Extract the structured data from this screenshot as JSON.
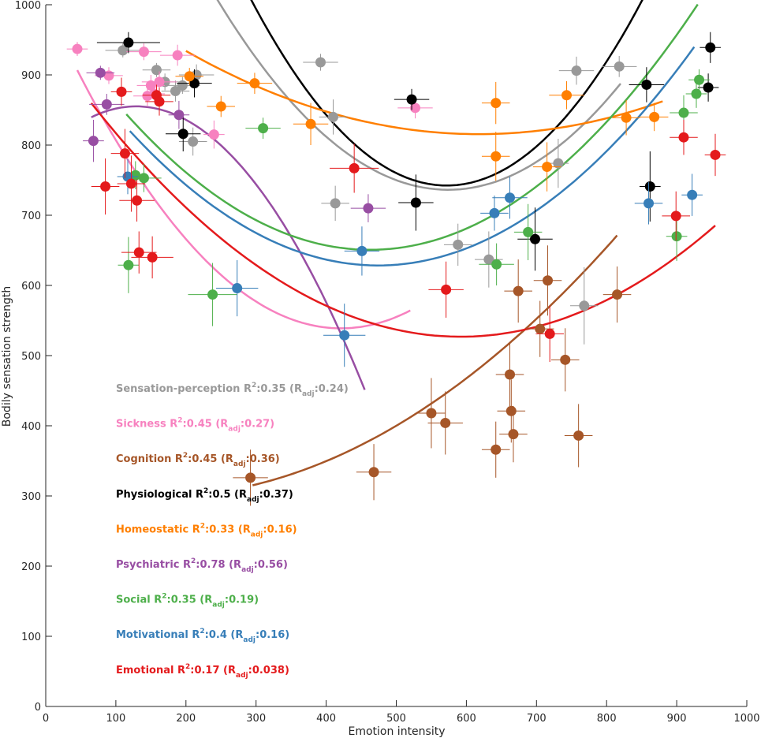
{
  "chart_data": {
    "type": "scatter",
    "xlabel": "Emotion intensity",
    "ylabel": "Bodily sensation strength",
    "xlim": [
      0,
      1000
    ],
    "ylim": [
      0,
      1000
    ],
    "xticks": [
      0,
      100,
      200,
      300,
      400,
      500,
      600,
      700,
      800,
      900,
      1000
    ],
    "yticks": [
      0,
      100,
      200,
      300,
      400,
      500,
      600,
      700,
      800,
      900,
      1000
    ],
    "grid": false,
    "error_bars": true,
    "series": [
      {
        "name": "Sensation-perception",
        "color": "#999999",
        "stat": {
          "r2": "0.35",
          "r2adj": "0.24"
        },
        "fit": {
          "a": 0.0025,
          "b": -2.87,
          "c": 1560,
          "x_range": [
            115,
            820
          ]
        },
        "points": [
          [
            110,
            935,
            25,
            10
          ],
          [
            158,
            907,
            20,
            10
          ],
          [
            170,
            890,
            25,
            12
          ],
          [
            185,
            877,
            20,
            15
          ],
          [
            195,
            885,
            25,
            12
          ],
          [
            210,
            805,
            20,
            20
          ],
          [
            215,
            900,
            25,
            15
          ],
          [
            392,
            918,
            25,
            12
          ],
          [
            410,
            840,
            20,
            25
          ],
          [
            413,
            717,
            20,
            25
          ],
          [
            588,
            658,
            20,
            30
          ],
          [
            632,
            637,
            20,
            40
          ],
          [
            731,
            774,
            15,
            35
          ],
          [
            757,
            906,
            25,
            20
          ],
          [
            768,
            571,
            20,
            55
          ],
          [
            818,
            912,
            25,
            15
          ]
        ]
      },
      {
        "name": "Sickness",
        "color": "#f781bf",
        "stat": {
          "r2": "0.45",
          "r2adj": "0.27"
        },
        "fit": {
          "a": 0.0026,
          "b": -2.19,
          "c": 1000,
          "x_range": [
            45,
            520
          ]
        },
        "points": [
          [
            45,
            937,
            15,
            10
          ],
          [
            90,
            899,
            20,
            12
          ],
          [
            140,
            933,
            25,
            12
          ],
          [
            145,
            870,
            20,
            15
          ],
          [
            150,
            885,
            20,
            15
          ],
          [
            155,
            873,
            15,
            10
          ],
          [
            162,
            890,
            25,
            15
          ],
          [
            188,
            928,
            25,
            15
          ],
          [
            240,
            815,
            15,
            20
          ],
          [
            527,
            853,
            25,
            15
          ]
        ]
      },
      {
        "name": "Cognition",
        "color": "#a65628",
        "stat": {
          "r2": "0.45",
          "r2adj": "0.36"
        },
        "fit": {
          "a": 0.00086,
          "b": -0.27,
          "c": 320,
          "x_range": [
            295,
            815
          ]
        },
        "points": [
          [
            292,
            326,
            25,
            40
          ],
          [
            468,
            334,
            25,
            40
          ],
          [
            550,
            418,
            20,
            50
          ],
          [
            570,
            404,
            25,
            45
          ],
          [
            642,
            366,
            20,
            40
          ],
          [
            662,
            473,
            20,
            45
          ],
          [
            664,
            421,
            20,
            45
          ],
          [
            667,
            388,
            20,
            40
          ],
          [
            674,
            592,
            20,
            45
          ],
          [
            705,
            538,
            20,
            40
          ],
          [
            716,
            607,
            20,
            50
          ],
          [
            741,
            494,
            20,
            45
          ],
          [
            760,
            386,
            20,
            45
          ],
          [
            815,
            587,
            20,
            40
          ]
        ]
      },
      {
        "name": "Physiological",
        "color": "#000000",
        "stat": {
          "r2": "0.5",
          "r2adj": "0.37"
        },
        "fit": {
          "a": 0.0034,
          "b": -3.89,
          "c": 1855,
          "x_range": [
            125,
            945
          ]
        },
        "points": [
          [
            118,
            946,
            45,
            15
          ],
          [
            196,
            816,
            25,
            25
          ],
          [
            212,
            888,
            25,
            20
          ],
          [
            522,
            865,
            25,
            15
          ],
          [
            528,
            718,
            25,
            40
          ],
          [
            698,
            666,
            25,
            45
          ],
          [
            857,
            886,
            25,
            25
          ],
          [
            862,
            741,
            15,
            50
          ],
          [
            945,
            882,
            15,
            20
          ],
          [
            948,
            939,
            15,
            22
          ]
        ]
      },
      {
        "name": "Homeostatic",
        "color": "#ff7f00",
        "stat": {
          "r2": "0.33",
          "r2adj": "0.16"
        },
        "fit": {
          "a": 0.00068,
          "b": -0.84,
          "c": 1075,
          "x_range": [
            200,
            880
          ]
        },
        "points": [
          [
            205,
            898,
            20,
            12
          ],
          [
            250,
            855,
            20,
            15
          ],
          [
            298,
            888,
            25,
            15
          ],
          [
            378,
            830,
            25,
            30
          ],
          [
            642,
            860,
            20,
            30
          ],
          [
            642,
            784,
            20,
            35
          ],
          [
            715,
            769,
            20,
            35
          ],
          [
            743,
            871,
            25,
            20
          ],
          [
            828,
            839,
            20,
            25
          ],
          [
            868,
            840,
            20,
            20
          ]
        ]
      },
      {
        "name": "Psychiatric",
        "color": "#984ea3",
        "stat": {
          "r2": "0.78",
          "r2adj": "0.56"
        },
        "fit": {
          "a": -0.0038,
          "b": 0.98,
          "c": 792,
          "x_range": [
            65,
            455
          ]
        },
        "points": [
          [
            68,
            806,
            15,
            30
          ],
          [
            78,
            903,
            20,
            10
          ],
          [
            87,
            858,
            25,
            15
          ],
          [
            190,
            843,
            15,
            20
          ],
          [
            460,
            710,
            25,
            20
          ]
        ]
      },
      {
        "name": "Social",
        "color": "#4daf4a",
        "stat": {
          "r2": "0.35",
          "r2adj": "0.19"
        },
        "fit": {
          "a": 0.0016,
          "b": -1.48,
          "c": 993,
          "x_range": [
            115,
            930
          ]
        },
        "points": [
          [
            118,
            629,
            15,
            40
          ],
          [
            128,
            757,
            15,
            20
          ],
          [
            140,
            753,
            25,
            20
          ],
          [
            238,
            587,
            35,
            45
          ],
          [
            310,
            824,
            25,
            15
          ],
          [
            643,
            630,
            25,
            30
          ],
          [
            688,
            676,
            20,
            40
          ],
          [
            900,
            670,
            15,
            35
          ],
          [
            910,
            846,
            20,
            25
          ],
          [
            928,
            873,
            15,
            20
          ],
          [
            932,
            893,
            15,
            15
          ]
        ]
      },
      {
        "name": "Motivational",
        "color": "#377eb8",
        "stat": {
          "r2": "0.4",
          "r2adj": "0.16"
        },
        "fit": {
          "a": 0.00153,
          "b": -1.45,
          "c": 972,
          "x_range": [
            120,
            925
          ]
        },
        "points": [
          [
            117,
            755,
            15,
            25
          ],
          [
            273,
            596,
            30,
            40
          ],
          [
            426,
            529,
            30,
            45
          ],
          [
            451,
            649,
            25,
            35
          ],
          [
            640,
            703,
            20,
            25
          ],
          [
            662,
            725,
            25,
            30
          ],
          [
            860,
            717,
            20,
            30
          ],
          [
            922,
            729,
            15,
            30
          ]
        ]
      },
      {
        "name": "Emotional",
        "color": "#e41a1c",
        "stat": {
          "r2": "0.17",
          "r2adj": "0.038"
        },
        "fit": {
          "a": 0.0012,
          "b": -1.42,
          "c": 947,
          "x_range": [
            65,
            955
          ]
        },
        "points": [
          [
            85,
            741,
            20,
            40
          ],
          [
            108,
            876,
            15,
            20
          ],
          [
            113,
            788,
            20,
            35
          ],
          [
            122,
            745,
            20,
            40
          ],
          [
            130,
            721,
            25,
            30
          ],
          [
            133,
            647,
            25,
            30
          ],
          [
            152,
            640,
            30,
            30
          ],
          [
            158,
            871,
            20,
            15
          ],
          [
            162,
            862,
            20,
            20
          ],
          [
            440,
            767,
            35,
            35
          ],
          [
            571,
            594,
            25,
            40
          ],
          [
            719,
            531,
            20,
            40
          ],
          [
            899,
            699,
            20,
            35
          ],
          [
            910,
            811,
            20,
            25
          ],
          [
            955,
            786,
            15,
            30
          ]
        ]
      }
    ]
  }
}
